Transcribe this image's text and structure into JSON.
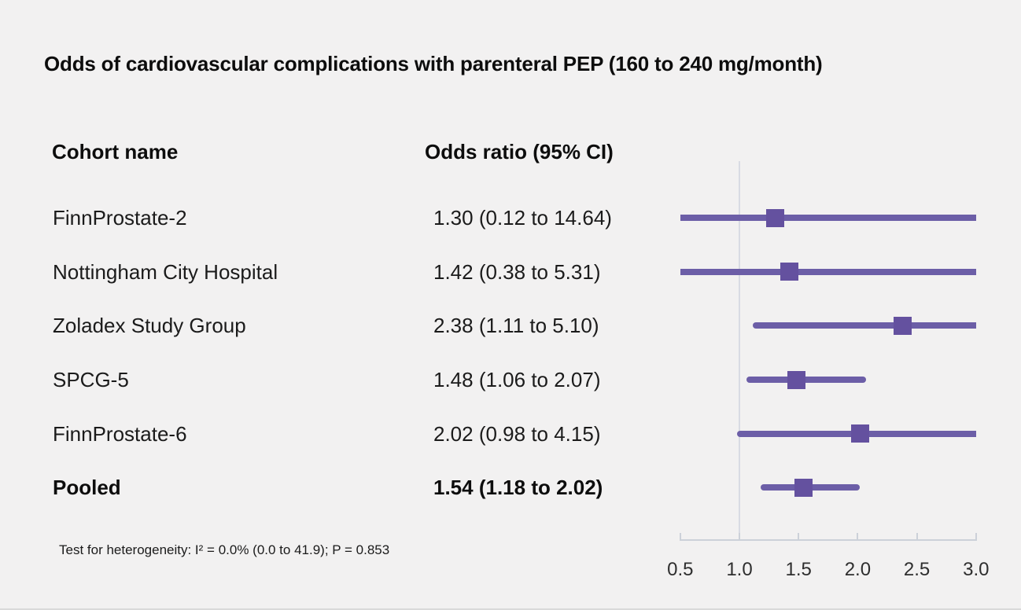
{
  "chart_data": {
    "type": "forest",
    "title": "Odds of cardiovascular complications with parenteral PEP (160 to 240 mg/month)",
    "columns": {
      "cohort": "Cohort name",
      "odds_ratio": "Odds ratio (95% CI)"
    },
    "studies": [
      {
        "label": "FinnProstate-2",
        "display": "1.30 (0.12 to 14.64)",
        "or": 1.3,
        "ci_low": 0.12,
        "ci_high": 14.64,
        "pooled": false
      },
      {
        "label": "Nottingham City Hospital",
        "display": "1.42 (0.38 to 5.31)",
        "or": 1.42,
        "ci_low": 0.38,
        "ci_high": 5.31,
        "pooled": false
      },
      {
        "label": "Zoladex Study Group",
        "display": "2.38 (1.11 to 5.10)",
        "or": 2.38,
        "ci_low": 1.11,
        "ci_high": 5.1,
        "pooled": false
      },
      {
        "label": "SPCG-5",
        "display": "1.48 (1.06 to 2.07)",
        "or": 1.48,
        "ci_low": 1.06,
        "ci_high": 2.07,
        "pooled": false
      },
      {
        "label": "FinnProstate-6",
        "display": "2.02 (0.98 to 4.15)",
        "or": 2.02,
        "ci_low": 0.98,
        "ci_high": 4.15,
        "pooled": false
      },
      {
        "label": "Pooled",
        "display": "1.54 (1.18 to 2.02)",
        "or": 1.54,
        "ci_low": 1.18,
        "ci_high": 2.02,
        "pooled": true
      }
    ],
    "axis": {
      "scale": "linear",
      "min": 0.5,
      "max": 3.0,
      "ticks": [
        0.5,
        1.0,
        1.5,
        2.0,
        2.5,
        3.0
      ],
      "tick_labels": [
        "0.5",
        "1.0",
        "1.5",
        "2.0",
        "2.5",
        "3.0"
      ],
      "reference_line": 1.0
    },
    "footnote": "Test for heterogeneity: I² = 0.0% (0.0 to 41.9); P = 0.853",
    "colors": {
      "marker": "#64519f",
      "ci_line": "#6c5ea7",
      "reference_line": "#d8dbe3",
      "axis": "#ccd1d9",
      "background": "#f2f1f1",
      "text": "#1b1b1b"
    }
  }
}
